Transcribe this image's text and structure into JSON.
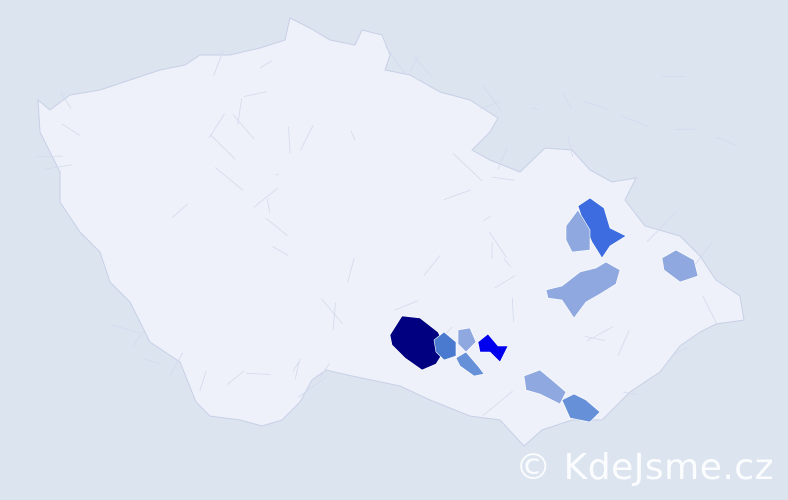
{
  "watermark": "© KdeJsme.cz",
  "colors": {
    "background": "#dce4f0",
    "country_fill": "#eef1f9",
    "border": "#c8d0e6",
    "levels": [
      "#8fa8e0",
      "#6690d8",
      "#4a7ad0",
      "#3c6ce0",
      "#0000ee",
      "#000080"
    ]
  },
  "highlighted_districts": [
    {
      "level": 5
    },
    {
      "level": 4
    },
    {
      "level": 3
    },
    {
      "level": 2
    },
    {
      "level": 1
    },
    {
      "level": 0
    },
    {
      "level": 0
    },
    {
      "level": 0
    },
    {
      "level": 0
    },
    {
      "level": 1
    },
    {
      "level": 0
    }
  ]
}
